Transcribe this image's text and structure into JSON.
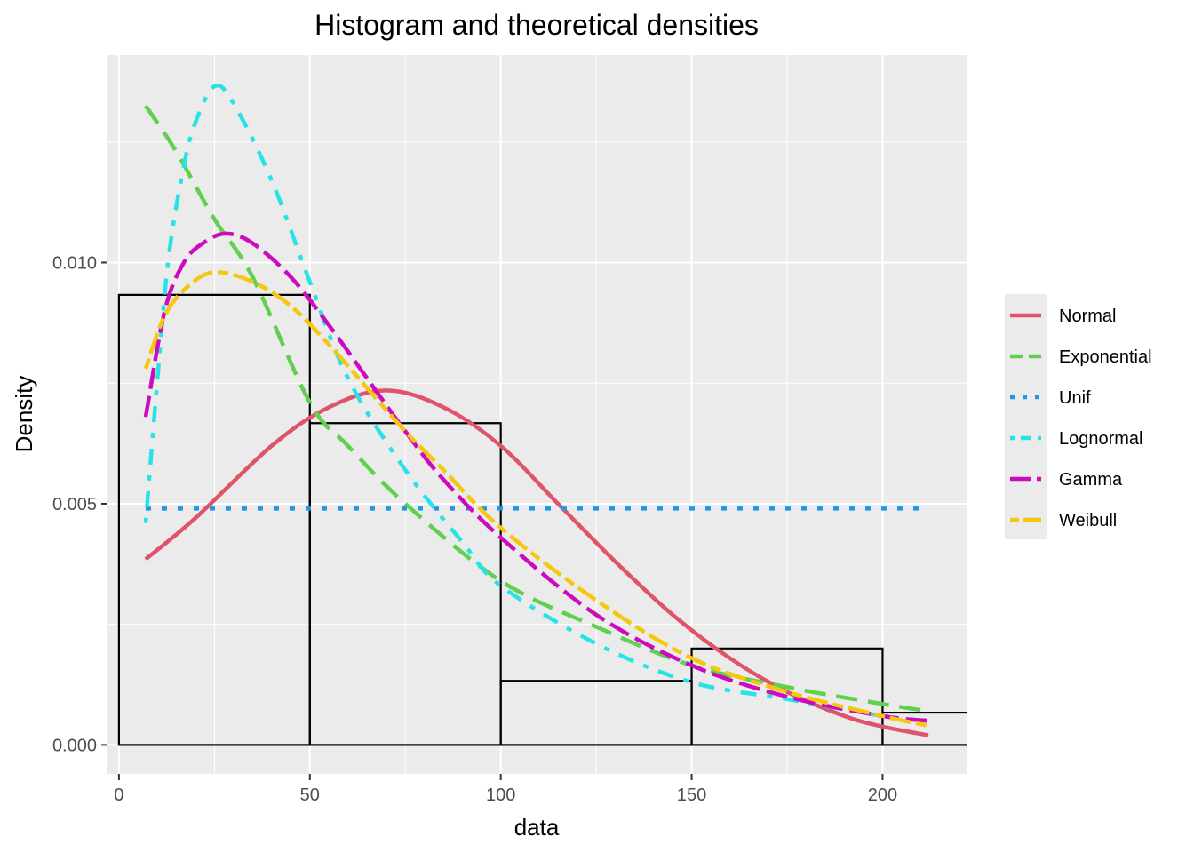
{
  "chart_data": {
    "type": "histogram",
    "title": "Histogram and theoretical densities",
    "xlabel": "data",
    "ylabel": "Density",
    "xlim": [
      -3,
      222
    ],
    "ylim": [
      -0.0006,
      0.0143
    ],
    "x_ticks": [
      0,
      50,
      100,
      150,
      200
    ],
    "x_tick_labels": [
      "0",
      "50",
      "100",
      "150",
      "200"
    ],
    "y_ticks": [
      0.0,
      0.005,
      0.01
    ],
    "y_tick_labels": [
      "0.000",
      "0.005",
      "0.010"
    ],
    "grid": true,
    "legend_position": "right",
    "histogram": {
      "bins": [
        {
          "x0": 0,
          "x1": 50,
          "density": 0.00933
        },
        {
          "x0": 50,
          "x1": 100,
          "density": 0.00667
        },
        {
          "x0": 100,
          "x1": 150,
          "density": 0.00133
        },
        {
          "x0": 150,
          "x1": 200,
          "density": 0.002
        },
        {
          "x0": 200,
          "x1": 250,
          "density": 0.00067
        }
      ]
    },
    "series": [
      {
        "name": "Normal",
        "color": "#DF536B",
        "dash": "solid",
        "points": [
          [
            7,
            0.00385
          ],
          [
            20,
            0.0047
          ],
          [
            40,
            0.0062
          ],
          [
            55,
            0.007
          ],
          [
            70,
            0.00735
          ],
          [
            85,
            0.007
          ],
          [
            100,
            0.0062
          ],
          [
            115,
            0.005
          ],
          [
            130,
            0.0038
          ],
          [
            145,
            0.0027
          ],
          [
            160,
            0.0018
          ],
          [
            175,
            0.0011
          ],
          [
            190,
            0.0006
          ],
          [
            200,
            0.00038
          ],
          [
            212,
            0.0002
          ]
        ]
      },
      {
        "name": "Exponential",
        "color": "#61D04F",
        "dash": "longdash",
        "points": [
          [
            7,
            0.01325
          ],
          [
            15,
            0.0123
          ],
          [
            25,
            0.0109
          ],
          [
            35,
            0.0097
          ],
          [
            50,
            0.0071
          ],
          [
            60,
            0.0062
          ],
          [
            75,
            0.005
          ],
          [
            100,
            0.0034
          ],
          [
            125,
            0.00245
          ],
          [
            150,
            0.00165
          ],
          [
            175,
            0.0012
          ],
          [
            200,
            0.00085
          ],
          [
            212,
            0.0007
          ]
        ]
      },
      {
        "name": "Unif",
        "color": "#2297E6",
        "dash": "dotted",
        "points": [
          [
            7,
            0.0049
          ],
          [
            212,
            0.0049
          ]
        ]
      },
      {
        "name": "Lognormal",
        "color": "#28E2E5",
        "dash": "dotdash",
        "points": [
          [
            7,
            0.0046
          ],
          [
            10,
            0.0075
          ],
          [
            13,
            0.0101
          ],
          [
            17,
            0.012
          ],
          [
            20,
            0.0129
          ],
          [
            25,
            0.01365
          ],
          [
            30,
            0.0133
          ],
          [
            40,
            0.0117
          ],
          [
            50,
            0.0096
          ],
          [
            60,
            0.0076
          ],
          [
            75,
            0.0057
          ],
          [
            90,
            0.0042
          ],
          [
            100,
            0.0033
          ],
          [
            125,
            0.0021
          ],
          [
            150,
            0.0013
          ],
          [
            175,
            0.00095
          ],
          [
            200,
            0.0006
          ],
          [
            212,
            0.0005
          ]
        ]
      },
      {
        "name": "Gamma",
        "color": "#CD0BBC",
        "dash": "dashed",
        "points": [
          [
            7,
            0.0068
          ],
          [
            12,
            0.009
          ],
          [
            17,
            0.01
          ],
          [
            22,
            0.0104
          ],
          [
            28,
            0.0106
          ],
          [
            35,
            0.0104
          ],
          [
            45,
            0.0097
          ],
          [
            55,
            0.0087
          ],
          [
            65,
            0.0076
          ],
          [
            75,
            0.0065
          ],
          [
            85,
            0.0055
          ],
          [
            100,
            0.0043
          ],
          [
            125,
            0.0027
          ],
          [
            150,
            0.00165
          ],
          [
            175,
            0.001
          ],
          [
            200,
            0.0006
          ],
          [
            212,
            0.0005
          ]
        ]
      },
      {
        "name": "Weibull",
        "color": "#F5C710",
        "dash": "twodash",
        "points": [
          [
            7,
            0.0078
          ],
          [
            12,
            0.0089
          ],
          [
            18,
            0.0095
          ],
          [
            25,
            0.0098
          ],
          [
            35,
            0.0096
          ],
          [
            45,
            0.0091
          ],
          [
            55,
            0.0083
          ],
          [
            65,
            0.0074
          ],
          [
            75,
            0.0065
          ],
          [
            85,
            0.0057
          ],
          [
            100,
            0.0045
          ],
          [
            125,
            0.003
          ],
          [
            150,
            0.0018
          ],
          [
            175,
            0.0011
          ],
          [
            200,
            0.0006
          ],
          [
            212,
            0.0004
          ]
        ]
      }
    ]
  }
}
